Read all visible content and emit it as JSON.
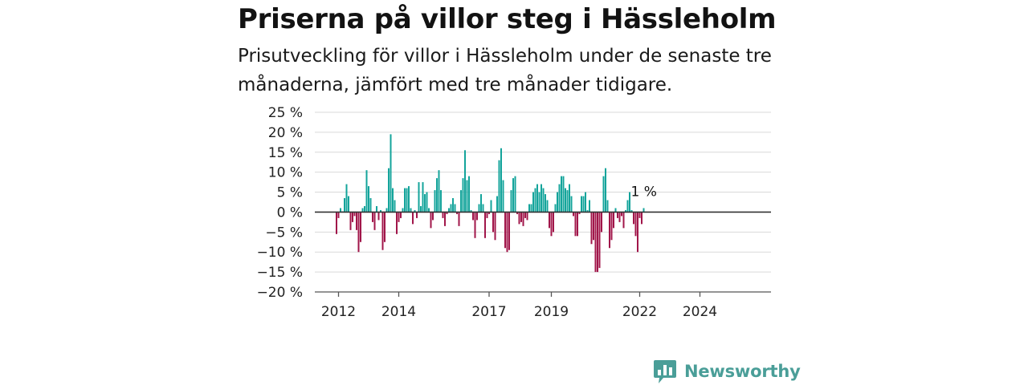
{
  "title": "Priserna på villor steg i Hässleholm",
  "subtitle": "Prisutveckling för villor i Hässleholm under de senaste tre månaderna, jämfört med tre månader tidigare.",
  "logo": {
    "text": "Newsworthy",
    "icon": "newsworthy-chart-icon"
  },
  "colors": {
    "positive": "#14a49b",
    "negative": "#a1164a",
    "grid": "#d9d9d9",
    "zero": "#333333"
  },
  "chart_data": {
    "type": "bar",
    "ylim": [
      -20,
      25
    ],
    "yticks": [
      25,
      20,
      15,
      10,
      5,
      0,
      -5,
      -10,
      -15,
      -20
    ],
    "ytick_labels": [
      "25 %",
      "20 %",
      "15 %",
      "10 %",
      "5 %",
      "0 %",
      "−5 %",
      "−10 %",
      "−15 %",
      "−20 %"
    ],
    "xtick_labels": [
      "2012",
      "2014",
      "2017",
      "2019",
      "2022",
      "2024"
    ],
    "xtick_indices": [
      1,
      31,
      76,
      107,
      151,
      181
    ],
    "last_label": "1 %",
    "grid": true,
    "values": [
      -5.5,
      -1.5,
      1.0,
      0.2,
      3.5,
      7.0,
      4.0,
      -4.5,
      -2.5,
      -1.0,
      -4.5,
      -10.0,
      -7.5,
      1.0,
      1.5,
      10.5,
      6.5,
      3.5,
      -2.5,
      -4.5,
      1.5,
      -2.0,
      0.5,
      -9.5,
      -7.5,
      1.0,
      11.0,
      19.5,
      6.0,
      3.0,
      -5.5,
      -2.5,
      -1.5,
      1.0,
      6.0,
      6.0,
      6.5,
      1.0,
      -3.0,
      0.5,
      -1.5,
      7.5,
      1.5,
      7.5,
      4.5,
      5.0,
      1.0,
      -4.0,
      -2.0,
      5.5,
      8.5,
      10.5,
      5.5,
      -1.5,
      -3.5,
      -0.5,
      1.0,
      2.0,
      3.5,
      2.0,
      -0.5,
      -3.5,
      5.5,
      8.5,
      15.5,
      8.0,
      9.0,
      0.5,
      -2.0,
      -6.5,
      -2.0,
      2.0,
      4.5,
      2.0,
      -6.5,
      -1.5,
      -0.5,
      3.0,
      -5.0,
      -7.0,
      4.0,
      13.0,
      16.0,
      8.0,
      -9.0,
      -10.0,
      -9.5,
      5.5,
      8.5,
      9.0,
      -0.5,
      -3.0,
      -2.5,
      -3.5,
      -1.5,
      -2.0,
      2.0,
      2.0,
      5.0,
      6.0,
      7.0,
      5.0,
      7.0,
      6.0,
      4.5,
      3.0,
      -4.0,
      -6.0,
      -5.0,
      2.0,
      5.0,
      7.0,
      9.0,
      9.0,
      6.0,
      5.5,
      7.0,
      4.0,
      -1.0,
      -6.0,
      -6.0,
      -0.5,
      4.0,
      4.0,
      5.0,
      0.5,
      3.0,
      -8.0,
      -7.0,
      -15.0,
      -15.0,
      -14.0,
      -5.0,
      9.0,
      11.0,
      3.0,
      -9.0,
      -7.0,
      -4.0,
      1.0,
      -1.5,
      -2.5,
      -1.0,
      -4.0,
      0.5,
      3.0,
      5.0,
      0.5,
      -3.0,
      -6.0,
      -10.0,
      -1.5,
      -3.0,
      1.0
    ]
  }
}
